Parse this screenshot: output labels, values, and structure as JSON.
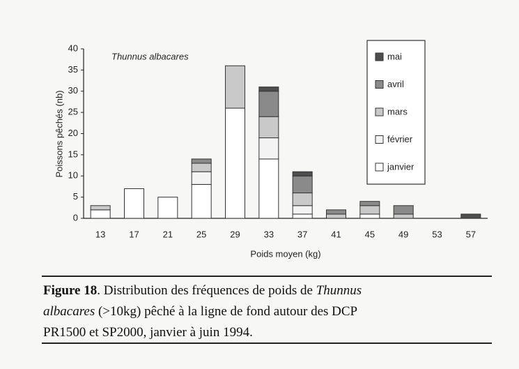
{
  "chart_data": {
    "type": "bar",
    "stacked": true,
    "annotation": "Thunnus albacares",
    "x_label": "Poids moyen (kg)",
    "y_label": "Poissons pêchés (nb)",
    "categories": [
      "13",
      "17",
      "21",
      "25",
      "29",
      "33",
      "37",
      "41",
      "45",
      "49",
      "53",
      "57"
    ],
    "series": [
      {
        "name": "janvier",
        "color": "#ffffff",
        "values": [
          2,
          7,
          5,
          8,
          26,
          14,
          1,
          0,
          1,
          0,
          0,
          0
        ]
      },
      {
        "name": "février",
        "color": "#f3f3f3",
        "values": [
          0,
          0,
          0,
          3,
          0,
          5,
          2,
          0,
          0,
          0,
          0,
          0
        ]
      },
      {
        "name": "mars",
        "color": "#c9c9c9",
        "values": [
          1,
          0,
          0,
          2,
          10,
          5,
          3,
          1,
          2,
          1,
          0,
          0
        ]
      },
      {
        "name": "avril",
        "color": "#8a8a8a",
        "values": [
          0,
          0,
          0,
          1,
          0,
          6,
          4,
          1,
          1,
          2,
          0,
          0
        ]
      },
      {
        "name": "mai",
        "color": "#4e4e4e",
        "values": [
          0,
          0,
          0,
          0,
          0,
          1,
          1,
          0,
          0,
          0,
          0,
          1
        ]
      }
    ],
    "ylim": [
      0,
      40
    ],
    "yticks": [
      0,
      5,
      10,
      15,
      20,
      25,
      30,
      35,
      40
    ],
    "grid": false
  },
  "caption": {
    "label": "Figure 18",
    "line1": ". Distribution des fréquences de poids de ",
    "species1": "Thunnus",
    "species2": "albacares",
    "line2": " (>10kg) pêché à la ligne de fond autour des DCP",
    "line3": "PR1500 et SP2000, janvier à juin 1994."
  }
}
